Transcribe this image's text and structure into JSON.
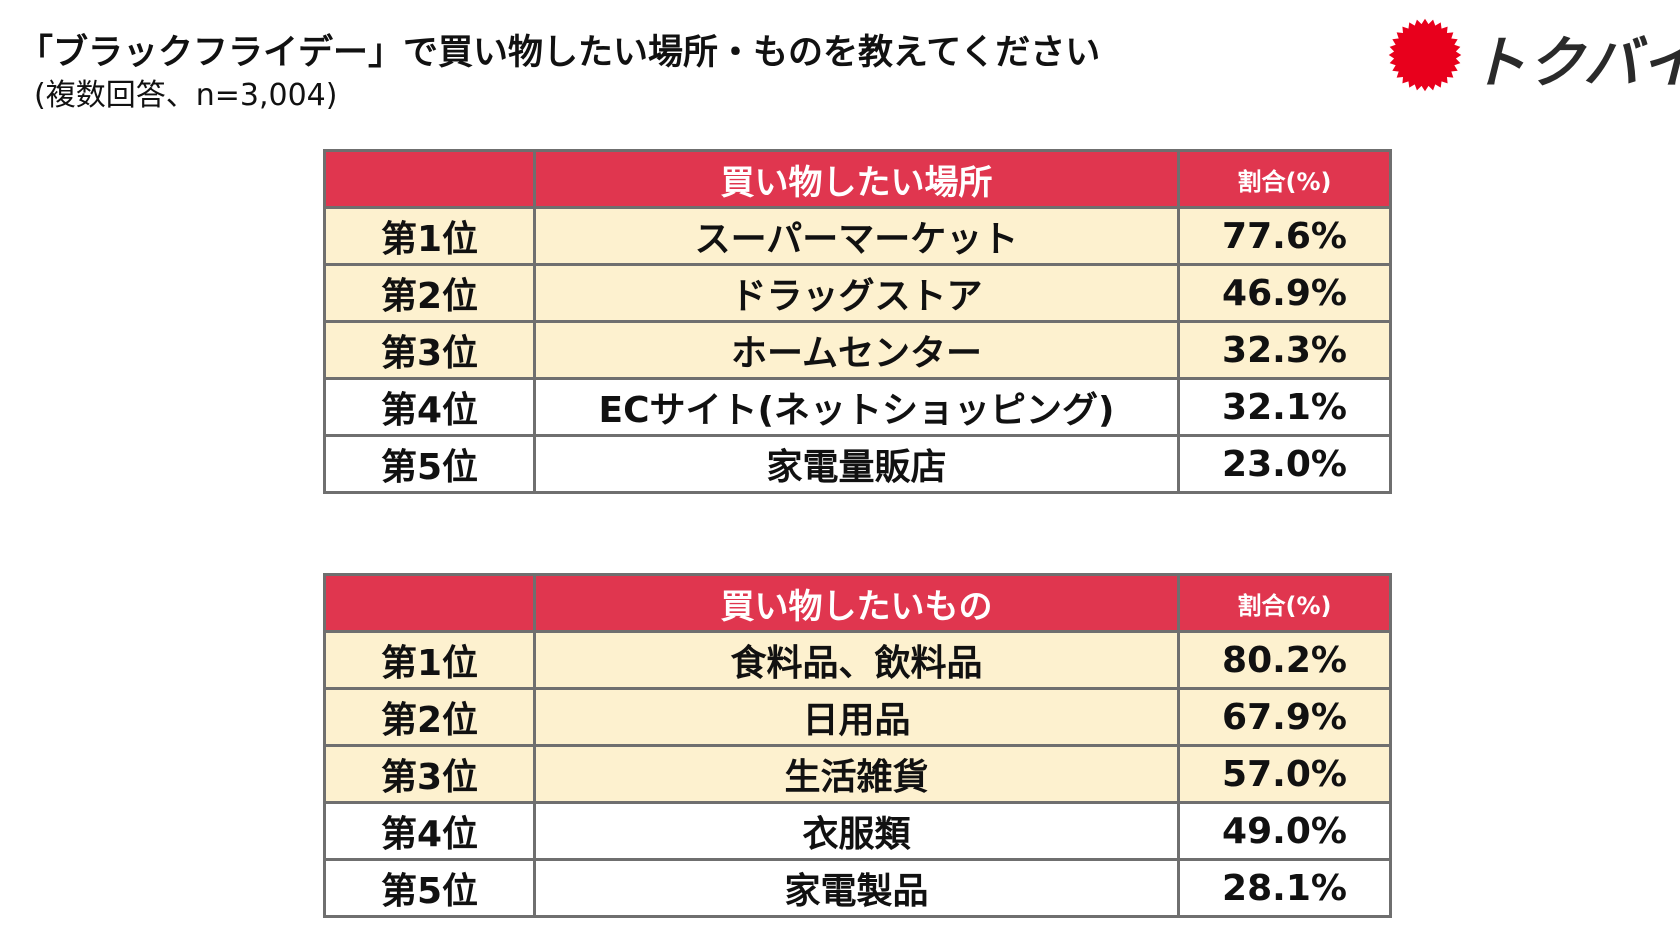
{
  "header": {
    "title": "「ブラックフライデー」で買い物したい場所・ものを教えてください",
    "subtitle": "(複数回答、n=3,004)"
  },
  "logo": {
    "text": "トクバイ",
    "sun_color": "#e8001c"
  },
  "colors": {
    "header_bg": "#e0364f",
    "highlight_row_bg": "#fdf1cf",
    "border": "#6f6f6f"
  },
  "places_table": {
    "headers": [
      "",
      "買い物したい場所",
      "割合(%)"
    ],
    "rows": [
      {
        "rank": "第1位",
        "name": "スーパーマーケット",
        "pct": "77.6%"
      },
      {
        "rank": "第2位",
        "name": "ドラッグストア",
        "pct": "46.9%"
      },
      {
        "rank": "第3位",
        "name": "ホームセンター",
        "pct": "32.3%"
      },
      {
        "rank": "第4位",
        "name": "ECサイト(ネットショッピング)",
        "pct": "32.1%"
      },
      {
        "rank": "第5位",
        "name": "家電量販店",
        "pct": "23.0%"
      }
    ]
  },
  "items_table": {
    "headers": [
      "",
      "買い物したいもの",
      "割合(%)"
    ],
    "rows": [
      {
        "rank": "第1位",
        "name": "食料品、飲料品",
        "pct": "80.2%"
      },
      {
        "rank": "第2位",
        "name": "日用品",
        "pct": "67.9%"
      },
      {
        "rank": "第3位",
        "name": "生活雑貨",
        "pct": "57.0%"
      },
      {
        "rank": "第4位",
        "name": "衣服類",
        "pct": "49.0%"
      },
      {
        "rank": "第5位",
        "name": "家電製品",
        "pct": "28.1%"
      }
    ]
  }
}
